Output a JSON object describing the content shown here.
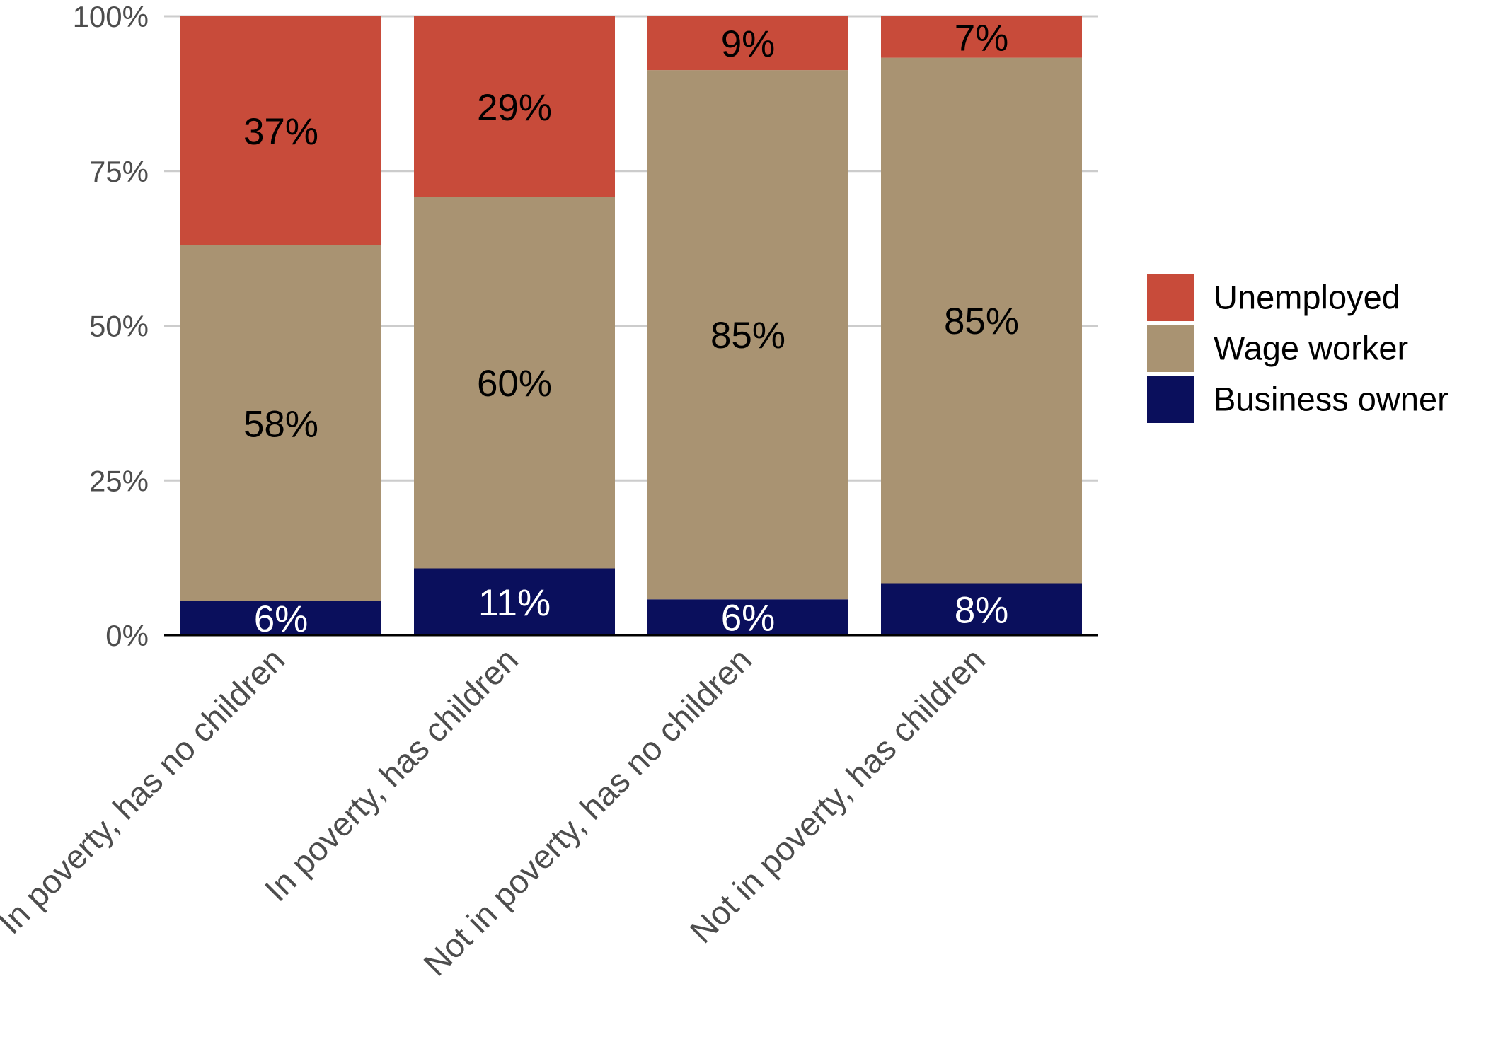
{
  "chart_data": {
    "type": "bar",
    "stacked": true,
    "orientation": "vertical",
    "categories": [
      "In poverty, has no children",
      "In poverty, has children",
      "Not in poverty, has no children",
      "Not in poverty, has children"
    ],
    "series": [
      {
        "name": "Business owner",
        "color": "#0a0f5c",
        "label_color": "#ffffff",
        "values": [
          0.055,
          0.108,
          0.058,
          0.084
        ],
        "labels": [
          "6%",
          "11%",
          "6%",
          "8%"
        ]
      },
      {
        "name": "Wage worker",
        "color": "#a99372",
        "label_color": "#000000",
        "values": [
          0.575,
          0.6,
          0.855,
          0.849
        ],
        "labels": [
          "58%",
          "60%",
          "85%",
          "85%"
        ]
      },
      {
        "name": "Unemployed",
        "color": "#c84b3a",
        "label_color": "#000000",
        "values": [
          0.37,
          0.292,
          0.087,
          0.067
        ],
        "labels": [
          "37%",
          "29%",
          "9%",
          "7%"
        ]
      }
    ],
    "ylim": [
      0,
      1
    ],
    "yticks": [
      {
        "value": 0,
        "label": "0%"
      },
      {
        "value": 0.25,
        "label": "25%"
      },
      {
        "value": 0.5,
        "label": "50%"
      },
      {
        "value": 0.75,
        "label": "75%"
      },
      {
        "value": 1,
        "label": "100%"
      }
    ],
    "grid": true,
    "legend": {
      "position": "right",
      "order": [
        "Unemployed",
        "Wage worker",
        "Business owner"
      ]
    }
  }
}
